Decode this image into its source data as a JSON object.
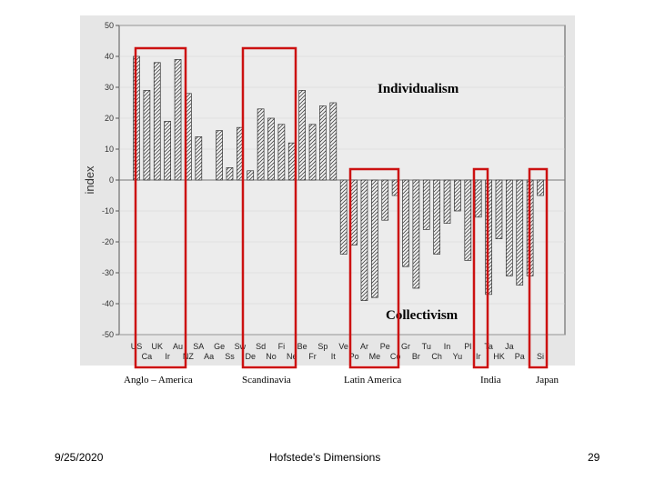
{
  "chart_data": {
    "type": "bar",
    "ylabel": "index",
    "ylim": [
      -50,
      50
    ],
    "yticks": [
      50,
      40,
      30,
      20,
      10,
      0,
      -10,
      -20,
      -30,
      -40,
      -50
    ],
    "categories": [
      "US",
      "Ca",
      "UK",
      "Ir",
      "Au",
      "NZ",
      "SA",
      "Ge",
      "Aa",
      "Sw",
      "Ss",
      "De",
      "Sd",
      "No",
      "Fi",
      "Ne",
      "Be",
      "Fr",
      "Sp",
      "It",
      "Po",
      "Ve",
      "Me",
      "Co",
      "Br",
      "Ar",
      "Ch",
      "Pe",
      "Gr",
      "Yu",
      "Tu",
      "Ir",
      "HK",
      "In",
      "Pa",
      "Pl",
      "Si",
      "Ta",
      "Th",
      "Ja"
    ],
    "top_labels": [
      "US",
      "UK",
      "Au",
      "SA",
      "Ge",
      "Sw",
      "Sd",
      "Fi",
      "Be",
      "Sp",
      "Ve",
      "Ar",
      "Pe",
      "Gr",
      "Tu",
      "In",
      "Pl",
      "Ta",
      "Ja"
    ],
    "bottom_labels": [
      "Ca",
      "Ir",
      "NZ",
      "Aa",
      "Ss",
      "De",
      "No",
      "Ne",
      "Fr",
      "It",
      "Po",
      "Me",
      "Co",
      "Br",
      "Ch",
      "Yu",
      "Ir",
      "HK",
      "Pa",
      "Si",
      "Th"
    ],
    "values": [
      40,
      29,
      38,
      19,
      39,
      28,
      14,
      0,
      16,
      4,
      17,
      3,
      23,
      20,
      18,
      12,
      29,
      18,
      24,
      25,
      -24,
      -21,
      -39,
      -38,
      -13,
      -5,
      -28,
      -35,
      -16,
      -24,
      -14,
      -10,
      -26,
      -12,
      -37,
      -19,
      -31,
      -34,
      -31,
      -5
    ],
    "annotations": {
      "top": "Individualism",
      "bottom": "Collectivism"
    },
    "groups": [
      "Anglo – America",
      "Scandinavia",
      "Latin America",
      "India",
      "Japan"
    ]
  },
  "footer": {
    "date": "9/25/2020",
    "title": "Hofstede's Dimensions",
    "page": "29"
  },
  "colors": {
    "panel": "#e6e6e6",
    "bar_fill": "#f2f2f2",
    "bar_stroke": "#333333",
    "highlight": "#cc1111"
  }
}
